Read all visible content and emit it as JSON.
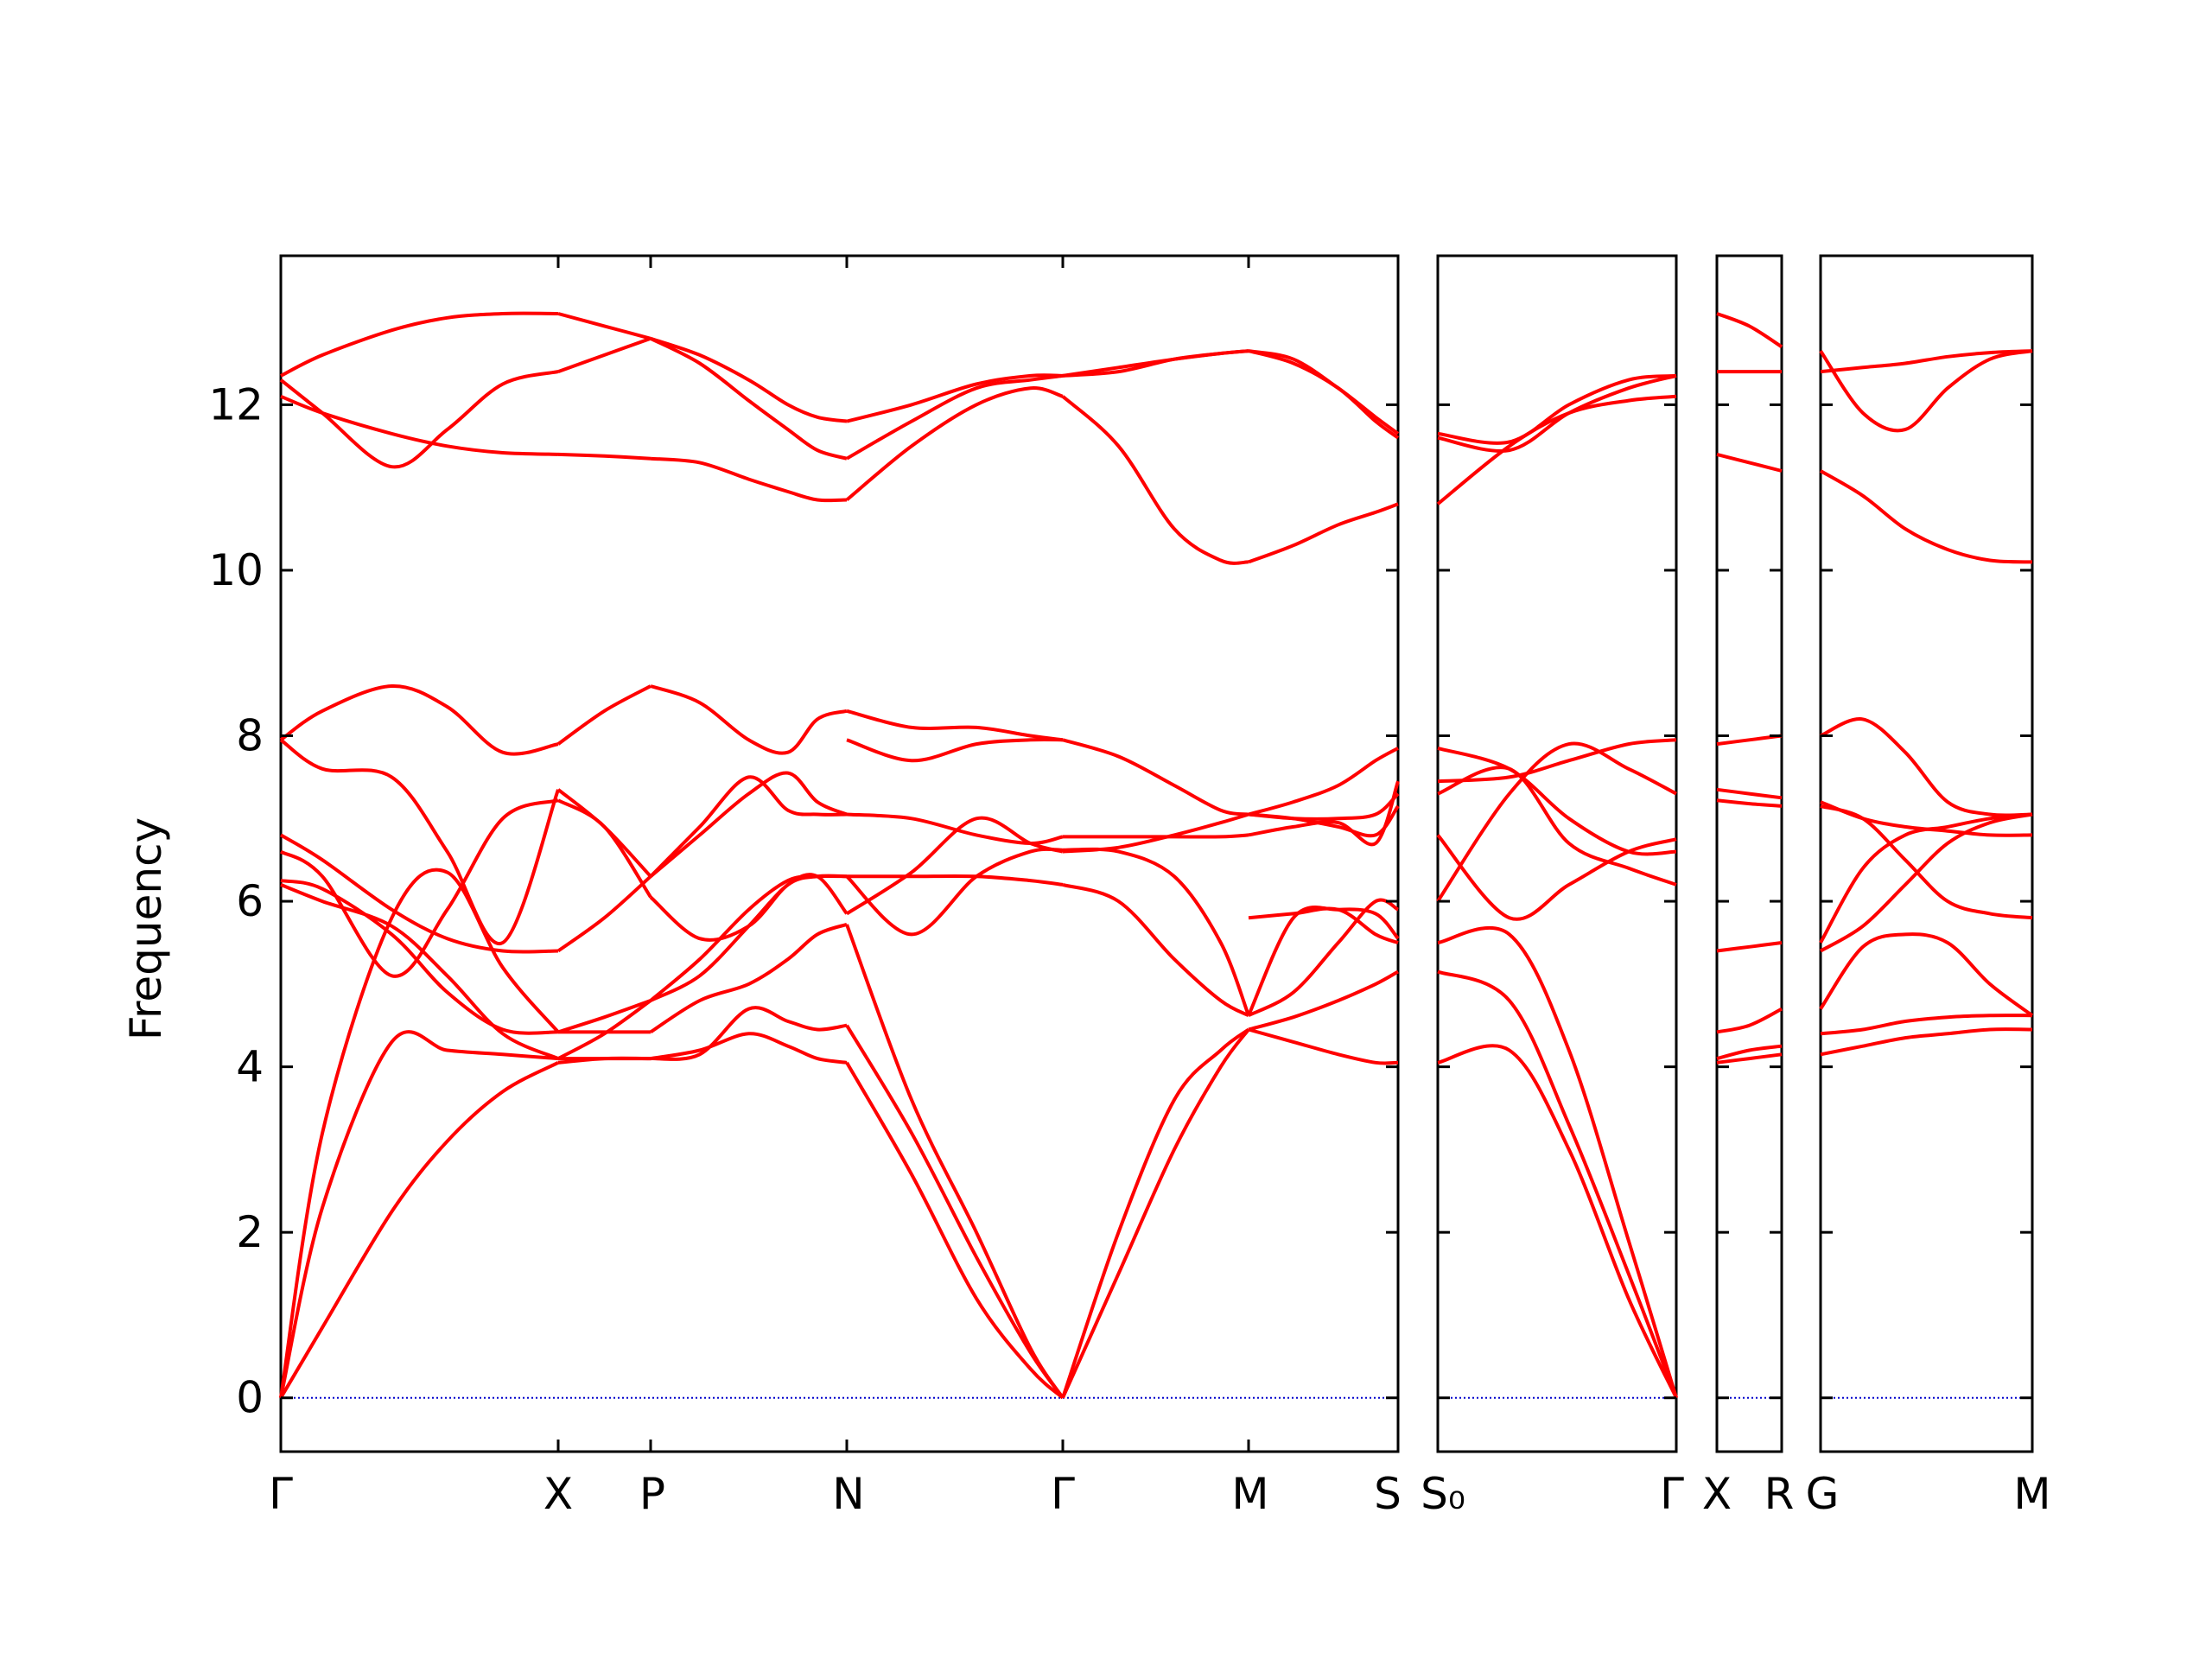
{
  "chart_data": {
    "type": "line",
    "title": "",
    "xlabel": "",
    "ylabel": "Frequency",
    "ylim": [
      -0.65,
      13.8
    ],
    "yticks": [
      0,
      2,
      4,
      6,
      8,
      10,
      12
    ],
    "grid": false,
    "legend": "none",
    "colors": {
      "bands": "#ff0000",
      "zero_line": "#0000cc",
      "frame": "#000000"
    },
    "panels": [
      {
        "segments": [
          {
            "from": "Γ",
            "to": "X",
            "x": [
              0,
              0.15,
              0.4,
              0.6,
              0.8,
              1
            ],
            "bands": [
              [
                0,
                0.85,
                2.25,
                3.1,
                3.7,
                4.05
              ],
              [
                0,
                2.3,
                4.3,
                4.2,
                4.15,
                4.1
              ],
              [
                0,
                3.2,
                5.8,
                6.35,
                5.2,
                4.42
              ],
              [
                6.2,
                6.0,
                5.7,
                5.1,
                4.4,
                4.1
              ],
              [
                6.25,
                6.15,
                5.6,
                4.9,
                4.45,
                4.42
              ],
              [
                6.6,
                6.3,
                5.1,
                5.9,
                7.0,
                7.22
              ],
              [
                6.8,
                6.5,
                5.9,
                5.55,
                5.4,
                5.4
              ],
              [
                7.95,
                7.6,
                7.5,
                6.6,
                5.5,
                7.35
              ],
              [
                7.95,
                8.3,
                8.6,
                8.35,
                7.8,
                7.9
              ],
              [
                12.1,
                11.9,
                11.65,
                11.5,
                11.42,
                11.4
              ],
              [
                12.3,
                11.9,
                11.25,
                11.7,
                12.25,
                12.4
              ],
              [
                12.35,
                12.6,
                12.9,
                13.05,
                13.1,
                13.1
              ]
            ]
          },
          {
            "from": "X",
            "to": "P",
            "x": [
              0,
              0.5,
              1
            ],
            "bands": [
              [
                4.05,
                4.1,
                4.1
              ],
              [
                4.1,
                4.1,
                4.1
              ],
              [
                4.42,
                4.42,
                4.42
              ],
              [
                4.1,
                4.4,
                4.8
              ],
              [
                4.42,
                4.6,
                4.8
              ],
              [
                7.22,
                6.9,
                6.05
              ],
              [
                5.4,
                5.8,
                6.3
              ],
              [
                7.35,
                6.9,
                6.3
              ],
              [
                7.9,
                8.3,
                8.6
              ],
              [
                11.4,
                11.38,
                11.35
              ],
              [
                12.4,
                12.6,
                12.8
              ],
              [
                13.1,
                12.95,
                12.8
              ]
            ]
          },
          {
            "from": "P",
            "to": "N",
            "x": [
              0,
              0.25,
              0.5,
              0.7,
              0.85,
              1
            ],
            "bands": [
              [
                4.1,
                4.2,
                4.4,
                4.25,
                4.1,
                4.05
              ],
              [
                4.1,
                4.15,
                4.7,
                4.55,
                4.45,
                4.5
              ],
              [
                4.42,
                4.8,
                5.0,
                5.3,
                5.6,
                5.72
              ],
              [
                4.8,
                5.1,
                5.7,
                6.2,
                6.3,
                6.3
              ],
              [
                4.8,
                5.3,
                5.9,
                6.25,
                6.3,
                6.3
              ],
              [
                6.05,
                5.55,
                5.7,
                6.2,
                6.3,
                5.85
              ],
              [
                6.3,
                6.8,
                7.3,
                7.55,
                7.2,
                7.05
              ],
              [
                6.3,
                6.9,
                7.5,
                7.1,
                7.05,
                7.05
              ],
              [
                8.6,
                8.4,
                7.95,
                7.8,
                8.2,
                8.3
              ],
              [
                11.35,
                11.3,
                11.1,
                10.95,
                10.85,
                10.85
              ],
              [
                12.8,
                12.5,
                12.05,
                11.7,
                11.45,
                11.35
              ],
              [
                12.8,
                12.6,
                12.3,
                12.0,
                11.85,
                11.8
              ]
            ]
          },
          {
            "from": "N",
            "to": "Γ",
            "x": [
              0,
              0.3,
              0.6,
              0.85,
              1
            ],
            "bands": [
              [
                4.05,
                2.7,
                1.2,
                0.35,
                0
              ],
              [
                4.5,
                3.2,
                1.7,
                0.55,
                0
              ],
              [
                5.72,
                3.6,
                2.0,
                0.6,
                0
              ],
              [
                5.85,
                6.35,
                7.0,
                6.7,
                6.6
              ],
              [
                6.3,
                5.6,
                6.3,
                6.6,
                6.62
              ],
              [
                6.3,
                6.3,
                6.3,
                6.25,
                6.2
              ],
              [
                7.05,
                7.0,
                6.8,
                6.7,
                6.78
              ],
              [
                7.95,
                7.7,
                7.9,
                7.95,
                7.95
              ],
              [
                8.3,
                8.1,
                8.1,
                8.0,
                7.95
              ],
              [
                10.85,
                11.5,
                12.0,
                12.2,
                12.1
              ],
              [
                11.35,
                11.8,
                12.2,
                12.3,
                12.35
              ],
              [
                11.8,
                12.0,
                12.25,
                12.35,
                12.35
              ]
            ]
          },
          {
            "from": "Γ",
            "to": "M",
            "x": [
              0,
              0.3,
              0.6,
              0.85,
              1
            ],
            "bands": [
              [
                0,
                1.5,
                3.0,
                4.0,
                4.45
              ],
              [
                0,
                2.0,
                3.6,
                4.2,
                4.45
              ],
              [
                6.2,
                6.0,
                5.3,
                4.8,
                4.62
              ],
              [
                6.62,
                6.6,
                6.3,
                5.5,
                4.62
              ],
              [
                6.6,
                6.65,
                6.8,
                6.95,
                7.05
              ],
              [
                6.78,
                6.78,
                6.78,
                6.78,
                6.8
              ],
              [
                7.95,
                7.75,
                7.4,
                7.1,
                7.05
              ],
              [
                12.1,
                11.5,
                10.5,
                10.12,
                10.1
              ],
              [
                12.35,
                12.4,
                12.55,
                12.62,
                12.65
              ],
              [
                12.35,
                12.45,
                12.55,
                12.62,
                12.65
              ]
            ]
          },
          {
            "from": "M",
            "to": "S",
            "x": [
              0,
              0.3,
              0.6,
              0.85,
              1
            ],
            "bands": [
              [
                4.45,
                4.6,
                4.8,
                5.0,
                5.15
              ],
              [
                4.45,
                4.3,
                4.15,
                4.05,
                4.05
              ],
              [
                4.62,
                4.9,
                5.5,
                6.0,
                5.9
              ],
              [
                4.62,
                5.8,
                5.9,
                5.85,
                5.55
              ],
              [
                5.8,
                5.85,
                5.9,
                5.6,
                5.5
              ],
              [
                7.05,
                7.0,
                6.9,
                6.8,
                7.15
              ],
              [
                7.05,
                7.0,
                7.0,
                7.05,
                7.3
              ],
              [
                6.8,
                6.9,
                6.95,
                6.7,
                7.45
              ],
              [
                7.05,
                7.2,
                7.4,
                7.7,
                7.85
              ],
              [
                10.1,
                10.3,
                10.55,
                10.7,
                10.8
              ],
              [
                12.65,
                12.55,
                12.2,
                11.85,
                11.65
              ],
              [
                12.65,
                12.5,
                12.2,
                11.8,
                11.6
              ]
            ]
          }
        ]
      },
      {
        "segments": [
          {
            "from": "S₀",
            "to": "Γ",
            "x": [
              0,
              0.3,
              0.55,
              0.8,
              1
            ],
            "bands": [
              [
                4.05,
                4.2,
                3.0,
                1.2,
                0
              ],
              [
                5.15,
                4.8,
                3.3,
                1.5,
                0
              ],
              [
                5.5,
                5.6,
                4.2,
                1.9,
                0
              ],
              [
                6.0,
                7.3,
                7.9,
                7.6,
                7.3
              ],
              [
                6.8,
                5.8,
                6.2,
                6.6,
                6.75
              ],
              [
                7.3,
                7.6,
                6.7,
                6.4,
                6.2
              ],
              [
                7.45,
                7.5,
                7.7,
                7.9,
                7.95
              ],
              [
                7.85,
                7.6,
                7.0,
                6.6,
                6.6
              ],
              [
                10.8,
                11.5,
                11.9,
                12.05,
                12.1
              ],
              [
                11.6,
                11.45,
                11.9,
                12.2,
                12.35
              ],
              [
                11.65,
                11.55,
                12.0,
                12.3,
                12.35
              ]
            ]
          }
        ]
      },
      {
        "segments": [
          {
            "from": "X",
            "to": "R",
            "x": [
              0,
              0.5,
              1
            ],
            "bands": [
              [
                4.05,
                4.1,
                4.15
              ],
              [
                4.1,
                4.2,
                4.25
              ],
              [
                4.42,
                4.5,
                4.7
              ],
              [
                5.4,
                5.45,
                5.5
              ],
              [
                7.22,
                7.18,
                7.15
              ],
              [
                7.35,
                7.3,
                7.25
              ],
              [
                7.9,
                7.95,
                8.0
              ],
              [
                11.4,
                11.3,
                11.2
              ],
              [
                12.4,
                12.4,
                12.4
              ],
              [
                13.1,
                12.95,
                12.7
              ]
            ]
          }
        ]
      },
      {
        "segments": [
          {
            "from": "G",
            "to": "M",
            "x": [
              0,
              0.2,
              0.4,
              0.6,
              0.8,
              1
            ],
            "bands": [
              [
                4.15,
                4.25,
                4.35,
                4.4,
                4.45,
                4.45
              ],
              [
                4.4,
                4.45,
                4.55,
                4.6,
                4.62,
                4.62
              ],
              [
                4.7,
                5.45,
                5.6,
                5.5,
                5.0,
                4.62
              ],
              [
                5.5,
                6.4,
                6.8,
                6.9,
                7.0,
                7.05
              ],
              [
                5.4,
                5.7,
                6.2,
                6.7,
                6.95,
                7.05
              ],
              [
                7.15,
                7.0,
                6.5,
                6.0,
                5.85,
                5.8
              ],
              [
                7.2,
                7.0,
                6.9,
                6.85,
                6.8,
                6.8
              ],
              [
                8.0,
                8.2,
                7.8,
                7.2,
                7.05,
                7.05
              ],
              [
                11.2,
                10.9,
                10.5,
                10.25,
                10.12,
                10.1
              ],
              [
                12.65,
                11.9,
                11.7,
                12.2,
                12.55,
                12.65
              ],
              [
                12.4,
                12.45,
                12.5,
                12.58,
                12.63,
                12.65
              ]
            ]
          }
        ]
      }
    ],
    "xtick_labels": [
      {
        "text": "Γ"
      },
      {
        "text": "X"
      },
      {
        "text": "P"
      },
      {
        "text": "N"
      },
      {
        "text": "Γ"
      },
      {
        "text": "M"
      },
      {
        "text": "S"
      },
      {
        "text": "S₀"
      },
      {
        "text": "Γ"
      },
      {
        "text": "X"
      },
      {
        "text": "R"
      },
      {
        "text": "G"
      },
      {
        "text": "M"
      }
    ]
  }
}
